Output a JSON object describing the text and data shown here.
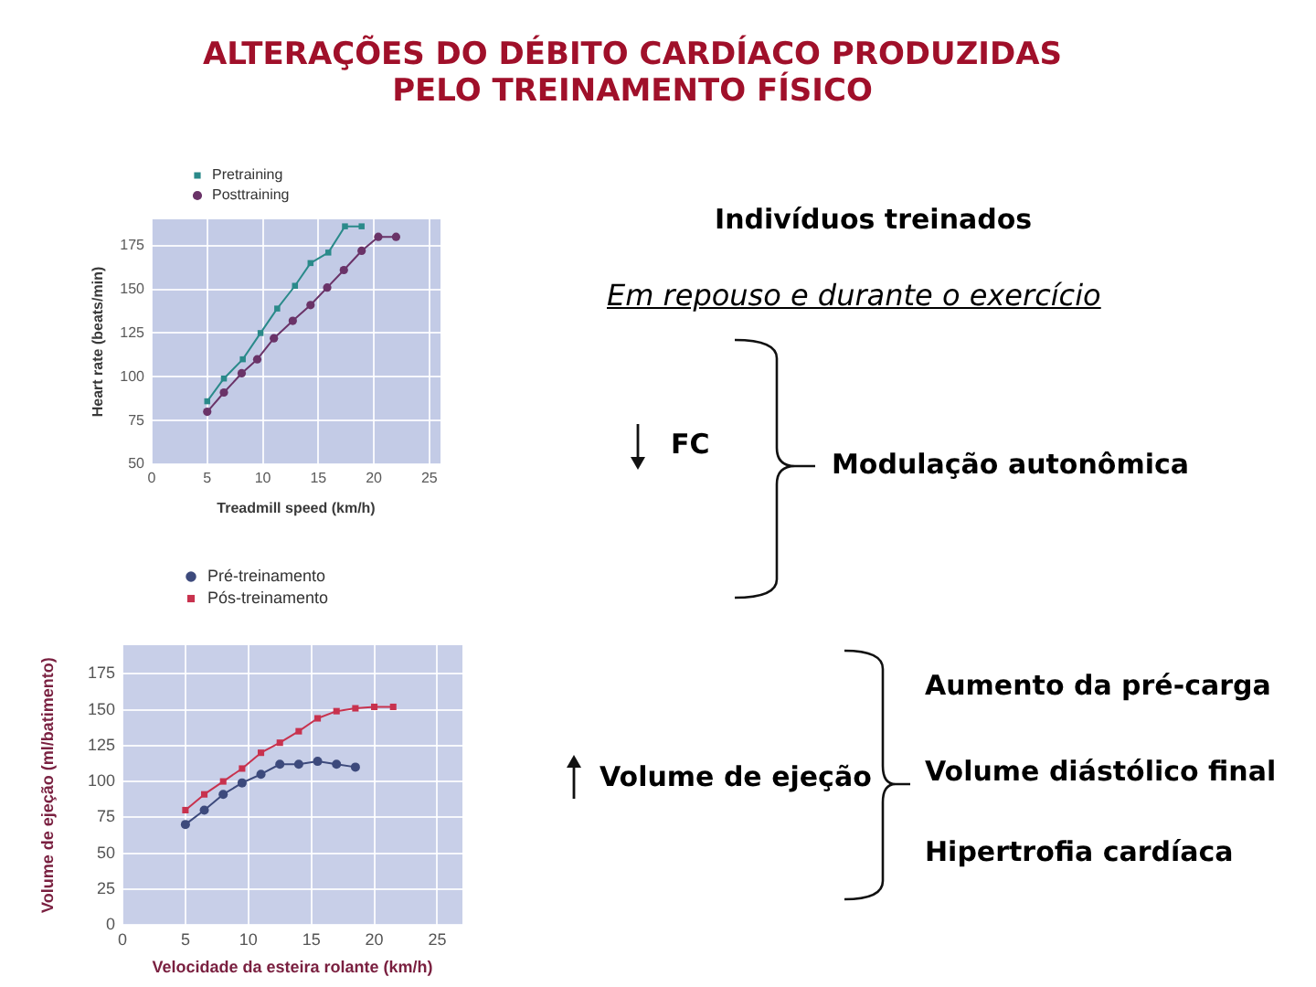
{
  "chart_data": [
    {
      "type": "other",
      "title": "ALTERAÇÕES DO DÉBITO CARDÍACO PRODUZIDAS PELO TREINAMENTO FÍSICO"
    },
    {
      "type": "line",
      "xlabel": "Treadmill speed (km/h)",
      "ylabel": "Heart rate (beats/min)",
      "xlim": [
        0,
        26
      ],
      "xticks": [
        0,
        5,
        10,
        15,
        20,
        25
      ],
      "ylim": [
        50,
        190
      ],
      "yticks": [
        50,
        75,
        100,
        125,
        150,
        175
      ],
      "grid": true,
      "legend": "top left",
      "series": [
        {
          "name": "Pretraining",
          "color": "#2a8a8a",
          "marker": "square",
          "x": [
            5,
            6.5,
            8.2,
            9.8,
            11.3,
            12.9,
            14.3,
            15.9,
            17.4,
            18.9
          ],
          "values": [
            86,
            99,
            110,
            125,
            139,
            152,
            165,
            171,
            186,
            186
          ]
        },
        {
          "name": "Posttraining",
          "color": "#6a3368",
          "marker": "circle",
          "x": [
            5,
            6.5,
            8.1,
            9.5,
            11,
            12.7,
            14.3,
            15.8,
            17.3,
            18.9,
            20.4,
            22
          ],
          "values": [
            80,
            91,
            102,
            110,
            122,
            132,
            141,
            151,
            161,
            172,
            180,
            180
          ]
        }
      ]
    },
    {
      "type": "other",
      "title": "Indivíduos treinados",
      "subtitle": "Em repouso e durante o exercício",
      "annotations": [
        "FC",
        "Modulação autonômica",
        "Volume de ejeção",
        "Aumento da pré-carga",
        "Volume diástólico final",
        "Hipertrofia cardíaca"
      ]
    },
    {
      "type": "line",
      "xlabel": "Velocidade da esteira rolante (km/h)",
      "ylabel": "Volume de ejeção (ml/batimento)",
      "xlim": [
        0,
        27
      ],
      "xticks": [
        0,
        5,
        10,
        15,
        20,
        25
      ],
      "ylim": [
        0,
        195
      ],
      "yticks": [
        0,
        25,
        50,
        75,
        100,
        125,
        150,
        175
      ],
      "grid": true,
      "legend": "top left",
      "series": [
        {
          "name": "Pré-treinamento",
          "color": "#3d4a7c",
          "marker": "circle",
          "x": [
            5,
            6.5,
            8,
            9.5,
            11,
            12.5,
            14,
            15.5,
            17,
            18.5
          ],
          "values": [
            70,
            80,
            91,
            99,
            105,
            112,
            112,
            114,
            112,
            110
          ]
        },
        {
          "name": "Pós-treinamento",
          "color": "#c8324e",
          "marker": "square",
          "x": [
            5,
            6.5,
            8,
            9.5,
            11,
            12.5,
            14,
            15.5,
            17,
            18.5,
            20,
            21.5
          ],
          "values": [
            80,
            91,
            100,
            109,
            120,
            127,
            135,
            144,
            149,
            151,
            152,
            152
          ]
        }
      ]
    }
  ]
}
